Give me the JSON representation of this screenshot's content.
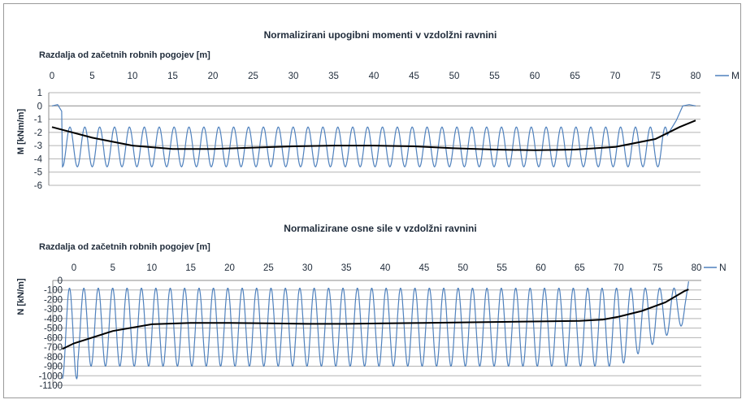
{
  "chart_data": [
    {
      "type": "line",
      "title": "Normalizirani  upogibni  momenti  v vzdolžni  ravnini",
      "xlabel": "Razdalja od začetnih robnih pogojev [m]",
      "ylabel": "M [kNm/m]",
      "xlim": [
        0,
        80
      ],
      "ylim": [
        -6,
        1
      ],
      "x_ticks": [
        "0",
        "5",
        "10",
        "15",
        "20",
        "25",
        "30",
        "35",
        "40",
        "45",
        "50",
        "55",
        "60",
        "65",
        "70",
        "75",
        "80"
      ],
      "y_ticks": [
        "1",
        "0",
        "-1",
        "-2",
        "-3",
        "-4",
        "-5",
        "-6"
      ],
      "x_axis_position": "top",
      "grid": true,
      "legend": {
        "position": "right",
        "entries": [
          "M"
        ]
      },
      "series": [
        {
          "name": "M",
          "color": "#4f81bd",
          "oscillation": {
            "start_x": 1.3,
            "end_x": 76.5,
            "period": 1.85,
            "upper_envelope": -1.6,
            "lower_envelope": -4.6
          },
          "boundary_values": {
            "x_start": 0,
            "y_start": 0,
            "x_end": 80,
            "y_end": 0
          },
          "values": [
            [
              0,
              0
            ],
            [
              0.6,
              0.1
            ],
            [
              1.3,
              -0.3
            ],
            [
              2,
              -4.8
            ],
            [
              3,
              -1.6
            ],
            [
              40,
              -1.5
            ],
            [
              76.5,
              -4.4
            ],
            [
              78,
              -1.0
            ],
            [
              79,
              0.1
            ],
            [
              80,
              0
            ]
          ]
        },
        {
          "name": "trend",
          "color": "#000000",
          "values": [
            [
              0,
              -1.6
            ],
            [
              5,
              -2.4
            ],
            [
              10,
              -3.0
            ],
            [
              15,
              -3.25
            ],
            [
              20,
              -3.25
            ],
            [
              25,
              -3.15
            ],
            [
              30,
              -3.05
            ],
            [
              35,
              -3.0
            ],
            [
              40,
              -3.0
            ],
            [
              45,
              -3.05
            ],
            [
              50,
              -3.2
            ],
            [
              55,
              -3.3
            ],
            [
              60,
              -3.35
            ],
            [
              65,
              -3.3
            ],
            [
              70,
              -3.1
            ],
            [
              75,
              -2.5
            ],
            [
              78,
              -1.6
            ],
            [
              80,
              -1.1
            ]
          ]
        }
      ]
    },
    {
      "type": "line",
      "title": "Normalizirane  osne sile v vzdolžni  ravnini",
      "xlabel": "Razdalja od začetnih robnih pogojev [m]",
      "ylabel": "N [kN/m]",
      "xlim": [
        0,
        80
      ],
      "ylim": [
        -1100,
        0
      ],
      "x_ticks": [
        "0",
        "5",
        "10",
        "15",
        "20",
        "25",
        "30",
        "35",
        "40",
        "45",
        "50",
        "55",
        "60",
        "65",
        "70",
        "75",
        "80"
      ],
      "y_ticks": [
        "0",
        "-100",
        "-200",
        "-300",
        "-400",
        "-500",
        "-600",
        "-700",
        "-800",
        "-900",
        "-1000",
        "-1100"
      ],
      "x_axis_position": "top",
      "grid": true,
      "legend": {
        "position": "right",
        "entries": [
          "N"
        ]
      },
      "series": [
        {
          "name": "N",
          "color": "#4f81bd",
          "oscillation": {
            "start_x": -1.5,
            "end_x": 78.5,
            "period": 1.85,
            "upper_envelope": -80,
            "lower_envelope": -900
          },
          "values": [
            [
              -1.5,
              -750
            ],
            [
              -0.8,
              -1030
            ],
            [
              1.5,
              -90
            ],
            [
              10,
              -80
            ],
            [
              40,
              -80
            ],
            [
              70,
              -80
            ],
            [
              77,
              -480
            ],
            [
              78.3,
              -60
            ],
            [
              79,
              -10
            ]
          ]
        },
        {
          "name": "trend",
          "color": "#000000",
          "values": [
            [
              -1.5,
              -720
            ],
            [
              0,
              -660
            ],
            [
              5,
              -530
            ],
            [
              10,
              -460
            ],
            [
              15,
              -445
            ],
            [
              20,
              -445
            ],
            [
              25,
              -450
            ],
            [
              30,
              -455
            ],
            [
              35,
              -455
            ],
            [
              40,
              -450
            ],
            [
              45,
              -445
            ],
            [
              50,
              -440
            ],
            [
              55,
              -435
            ],
            [
              60,
              -430
            ],
            [
              65,
              -425
            ],
            [
              68,
              -410
            ],
            [
              70,
              -380
            ],
            [
              73,
              -320
            ],
            [
              76,
              -230
            ],
            [
              78.5,
              -110
            ],
            [
              79,
              -95
            ]
          ]
        }
      ]
    }
  ]
}
